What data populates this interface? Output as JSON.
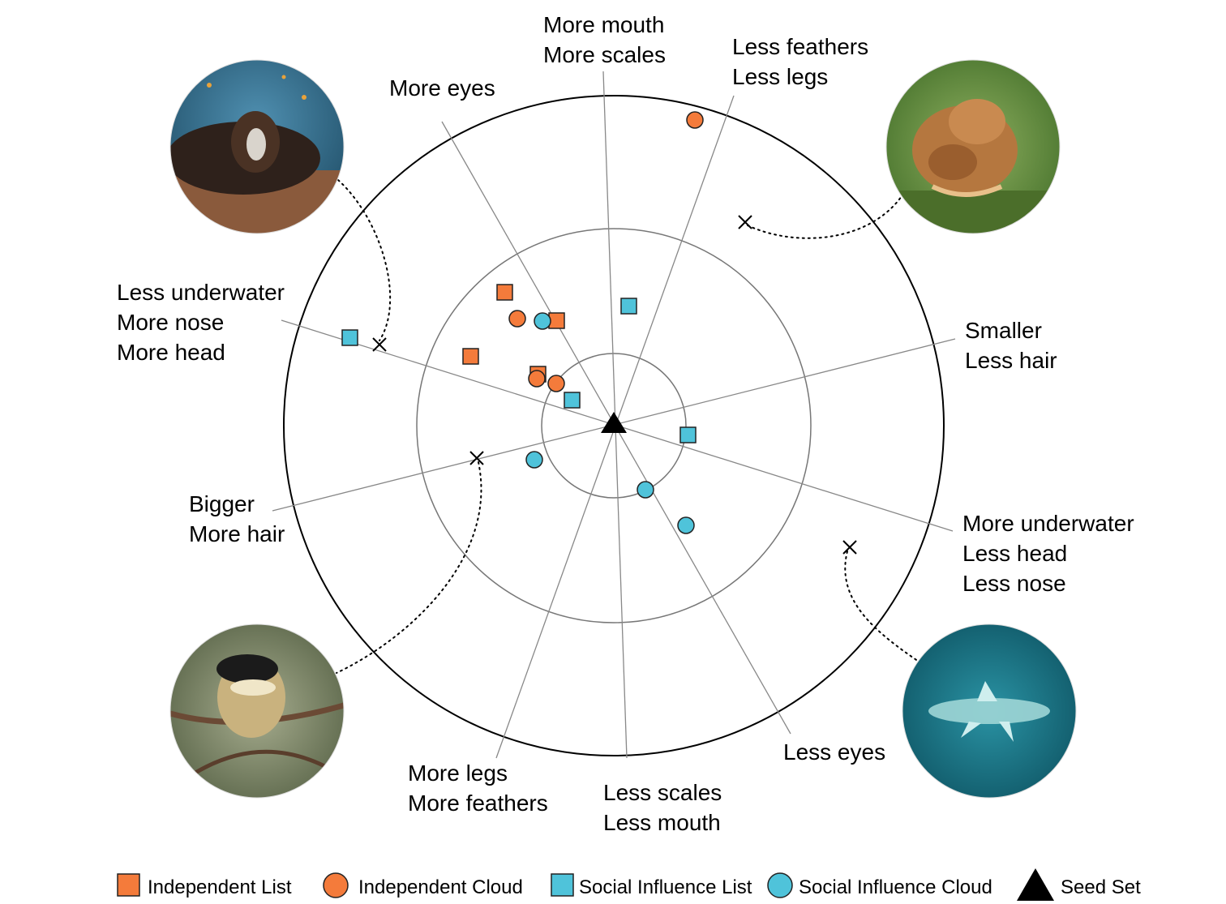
{
  "axis_labels": [
    {
      "lines": [
        "More mouth",
        "More scales"
      ]
    },
    {
      "lines": [
        "Less feathers",
        "Less legs"
      ]
    },
    {
      "lines": [
        "More eyes"
      ]
    },
    {
      "lines": [
        "Less underwater",
        "More nose",
        "More head"
      ]
    },
    {
      "lines": [
        "Smaller",
        "Less hair"
      ]
    },
    {
      "lines": [
        "Bigger",
        "More hair"
      ]
    },
    {
      "lines": [
        "More underwater",
        "Less head",
        "Less nose"
      ]
    },
    {
      "lines": [
        "More legs",
        "More feathers"
      ]
    },
    {
      "lines": [
        "Less scales",
        "Less mouth"
      ]
    },
    {
      "lines": [
        "Less eyes"
      ]
    }
  ],
  "legend": [
    {
      "key": "independent-list",
      "label": "Independent  List",
      "marker": "square",
      "color": "#F47B3B"
    },
    {
      "key": "independent-cloud",
      "label": "Independent  Cloud",
      "marker": "circle",
      "color": "#F47B3B"
    },
    {
      "key": "social-list",
      "label": "Social Influence List",
      "marker": "square",
      "color": "#4FC3DA"
    },
    {
      "key": "social-cloud",
      "label": "Social Influence Cloud",
      "marker": "circle",
      "color": "#4FC3DA"
    },
    {
      "key": "seed-set",
      "label": "Seed Set",
      "marker": "triangle",
      "color": "#000000"
    }
  ],
  "thumbnails": [
    {
      "subject": "furry-creature-underwater",
      "colors": [
        "#2f6a8c",
        "#3b2a22",
        "#c9a17a"
      ]
    },
    {
      "subject": "curled-bird-on-moss",
      "colors": [
        "#5e8a3a",
        "#b5773f",
        "#e3b07a"
      ]
    },
    {
      "subject": "bird-on-branch",
      "colors": [
        "#6f7b5a",
        "#222222",
        "#e8d9b0"
      ]
    },
    {
      "subject": "fish-underwater",
      "colors": [
        "#0f5f70",
        "#2a8c9c",
        "#d8f0f0"
      ]
    }
  ]
}
